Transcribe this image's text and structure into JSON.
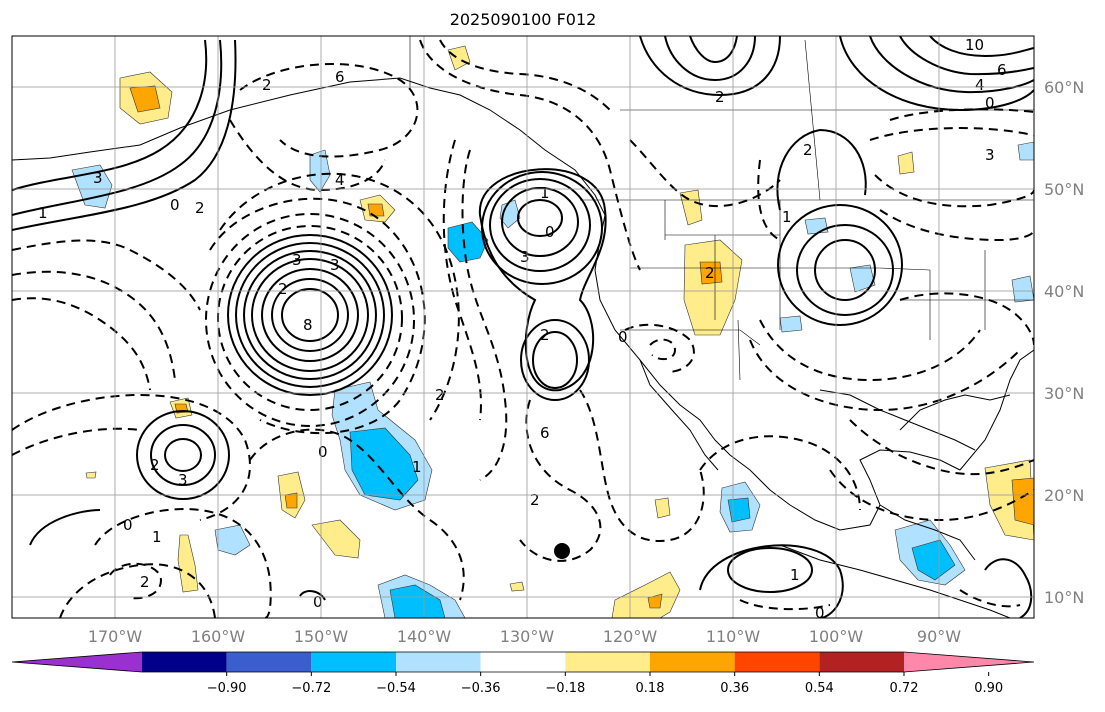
{
  "title": "2025090100 F012",
  "lat_labels": [
    "60°N",
    "50°N",
    "40°N",
    "30°N",
    "20°N",
    "10°N"
  ],
  "lon_labels": [
    "170°W",
    "160°W",
    "150°W",
    "140°W",
    "130°W",
    "120°W",
    "110°W",
    "100°W",
    "90°W"
  ],
  "colorbar": {
    "ticks": [
      "−0.90",
      "−0.72",
      "−0.54",
      "−0.36",
      "−0.18",
      "0.18",
      "0.36",
      "0.54",
      "0.72",
      "0.90"
    ],
    "colors": [
      "#9b30d0",
      "#00008b",
      "#3a5fcd",
      "#00bfff",
      "#b0e2ff",
      "#ffffff",
      "#ffec8b",
      "#ffa500",
      "#ff4500",
      "#b22222",
      "#ff88aa"
    ]
  },
  "contour_labels": [
    "3",
    "1",
    "0",
    "2",
    "3",
    "4",
    "2",
    "3",
    "2",
    "8",
    "6",
    "3",
    "0",
    "2",
    "1",
    "0",
    "2",
    "2",
    "0",
    "1",
    "3",
    "6",
    "2",
    "2",
    "0",
    "2",
    "0",
    "1",
    "4",
    "6",
    "10",
    "2",
    "2",
    "3",
    "0",
    "1",
    "0",
    "1"
  ]
}
